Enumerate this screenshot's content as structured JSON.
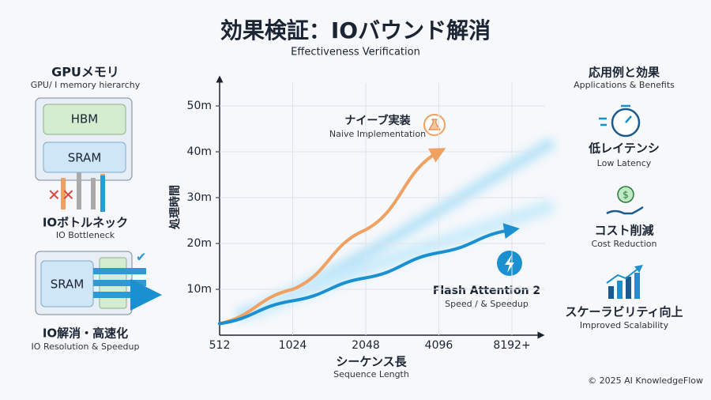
{
  "header": {
    "title": "効果検証：IOバウンド解消",
    "subtitle": "Effectiveness Verification"
  },
  "left": {
    "title": "GPUメモリ",
    "subtitle": "GPU/ I memory hierarchy",
    "hbm": "HBM",
    "sram": "SRAM",
    "bottleneck": "IOボトルネック",
    "bottleneck_en": "IO Bottleneck",
    "sram2": "SRAM",
    "resolved": "IO解消・高速化",
    "resolved_en": "IO Resolution & Speedup"
  },
  "right": {
    "title": "応用例と効果",
    "subtitle": "Applications & Benefits",
    "items": [
      {
        "label": "低レイテンシ",
        "en": "Low Latency"
      },
      {
        "label": "コスト削減",
        "en": "Cost Reduction"
      },
      {
        "label": "スケーラビリティ向上",
        "en": "Improved Scalability"
      }
    ]
  },
  "chart_data": {
    "type": "line",
    "y_label": "処理時間",
    "x_label": "シーケンス長",
    "x_sublabel": "Sequence Length",
    "categories": [
      "512",
      "1024",
      "2048",
      "4096",
      "8192+"
    ],
    "ylim": [
      0,
      55
    ],
    "yticks": [
      {
        "value": 10,
        "label": "10m"
      },
      {
        "value": 20,
        "label": "20m"
      },
      {
        "value": 30,
        "label": "30m"
      },
      {
        "value": 40,
        "label": "40m"
      },
      {
        "value": 50,
        "label": "50m"
      }
    ],
    "grid": true,
    "series": [
      {
        "name": "ナイーブ実装",
        "description": "Naive Implementation",
        "color": "#f0a060",
        "values": [
          2.5,
          10,
          23,
          40,
          null
        ]
      },
      {
        "name": "Flash Attention 2",
        "description": "Speed / & Speedup",
        "color": "#1a90d0",
        "values": [
          2.5,
          7.5,
          12.5,
          18,
          23
        ]
      }
    ]
  },
  "footer": "© 2025 AI KnowledgeFlow"
}
